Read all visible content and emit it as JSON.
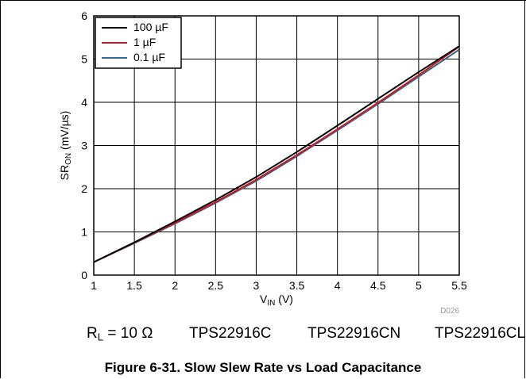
{
  "chart_data": {
    "type": "line",
    "xlabel": {
      "main": "V",
      "sub": "IN",
      "unit": " (V)"
    },
    "ylabel": {
      "main": "SR",
      "sub": "ON",
      "unit": " (mV/µs)"
    },
    "xlim": [
      1,
      5.5
    ],
    "ylim": [
      0,
      6
    ],
    "xticks": [
      1,
      1.5,
      2,
      2.5,
      3,
      3.5,
      4,
      4.5,
      5,
      5.5
    ],
    "xtick_labels": [
      "1",
      "1.5",
      "2",
      "2.5",
      "3",
      "3.5",
      "4",
      "4.5",
      "5",
      "5.5"
    ],
    "yticks": [
      0,
      1,
      2,
      3,
      4,
      5,
      6
    ],
    "ytick_labels": [
      "0",
      "1",
      "2",
      "3",
      "4",
      "5",
      "6"
    ],
    "grid": true,
    "legend_position": "top-left",
    "x": [
      1,
      1.5,
      2,
      2.5,
      3,
      3.5,
      4,
      4.5,
      5,
      5.5
    ],
    "series": [
      {
        "name": "100 µF",
        "color": "#000000",
        "values": [
          0.3,
          0.76,
          1.24,
          1.74,
          2.27,
          2.85,
          3.46,
          4.08,
          4.7,
          5.3
        ]
      },
      {
        "name": "1 µF",
        "color": "#d0161e",
        "values": [
          0.3,
          0.75,
          1.21,
          1.69,
          2.21,
          2.78,
          3.38,
          3.99,
          4.63,
          5.29
        ]
      },
      {
        "name": "0.1 µF",
        "color": "#336b8c",
        "values": [
          0.3,
          0.74,
          1.19,
          1.67,
          2.18,
          2.75,
          3.35,
          3.96,
          4.59,
          5.22
        ]
      }
    ],
    "watermark": "D026"
  },
  "conditions": {
    "load_label": {
      "main": "R",
      "sub": "L",
      "rest": " = 10 Ω"
    },
    "devices": [
      "TPS22916C",
      "TPS22916CN",
      "TPS22916CL"
    ]
  },
  "figure_title": "Figure 6-31. Slow Slew Rate vs Load Capacitance"
}
